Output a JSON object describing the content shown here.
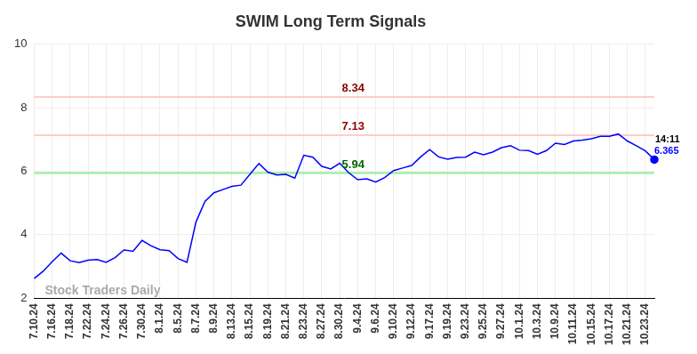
{
  "chart_data": {
    "type": "line",
    "title": "SWIM Long Term Signals",
    "categories": [
      "7.10.24",
      null,
      "7.16.24",
      null,
      "7.18.24",
      null,
      "7.22.24",
      null,
      "7.24.24",
      null,
      "7.26.24",
      null,
      "7.30.24",
      null,
      "8.1.24",
      null,
      "8.5.24",
      null,
      "8.7.24",
      null,
      "8.9.24",
      null,
      "8.13.24",
      null,
      "8.15.24",
      null,
      "8.19.24",
      null,
      "8.21.24",
      null,
      "8.23.24",
      null,
      "8.27.24",
      null,
      "8.30.24",
      null,
      "9.4.24",
      null,
      "9.6.24",
      null,
      "9.10.24",
      null,
      "9.12.24",
      null,
      "9.17.24",
      null,
      "9.19.24",
      null,
      "9.23.24",
      null,
      "9.25.24",
      null,
      "9.27.24",
      null,
      "10.1.24",
      null,
      "10.3.24",
      null,
      "10.9.24",
      null,
      "10.11.24",
      null,
      "10.15.24",
      null,
      "10.17.24",
      null,
      "10.21.24",
      null,
      "10.23.24",
      null
    ],
    "values": [
      2.62,
      2.85,
      3.15,
      3.42,
      3.18,
      3.12,
      3.2,
      3.22,
      3.13,
      3.28,
      3.52,
      3.48,
      3.82,
      3.65,
      3.53,
      3.5,
      3.25,
      3.13,
      4.4,
      5.05,
      5.32,
      5.42,
      5.52,
      5.56,
      5.9,
      6.24,
      5.97,
      5.88,
      5.9,
      5.78,
      6.5,
      6.44,
      6.15,
      6.07,
      6.25,
      5.95,
      5.73,
      5.76,
      5.66,
      5.8,
      6.02,
      6.1,
      6.18,
      6.45,
      6.68,
      6.45,
      6.38,
      6.43,
      6.44,
      6.6,
      6.52,
      6.6,
      6.74,
      6.8,
      6.66,
      6.65,
      6.53,
      6.65,
      6.88,
      6.84,
      6.95,
      6.98,
      7.02,
      7.1,
      7.1,
      7.17,
      6.95,
      6.8,
      6.64,
      6.365
    ],
    "color": "#0000ff",
    "ylim": [
      2,
      10
    ],
    "yticks": [
      2,
      4,
      6,
      8,
      10
    ],
    "grid": true,
    "reference_lines": [
      {
        "value": 8.34,
        "label": "8.34",
        "color": "#ffcccc",
        "label_color": "#8b0000"
      },
      {
        "value": 7.13,
        "label": "7.13",
        "color": "#ffcccc",
        "label_color": "#8b0000"
      },
      {
        "value": 5.94,
        "label": "5.94",
        "color": "#90ee90",
        "label_color": "#006400"
      }
    ],
    "last_point": {
      "time_label": "14:11",
      "value_label": "6.365"
    },
    "watermark": "Stock Traders Daily"
  }
}
